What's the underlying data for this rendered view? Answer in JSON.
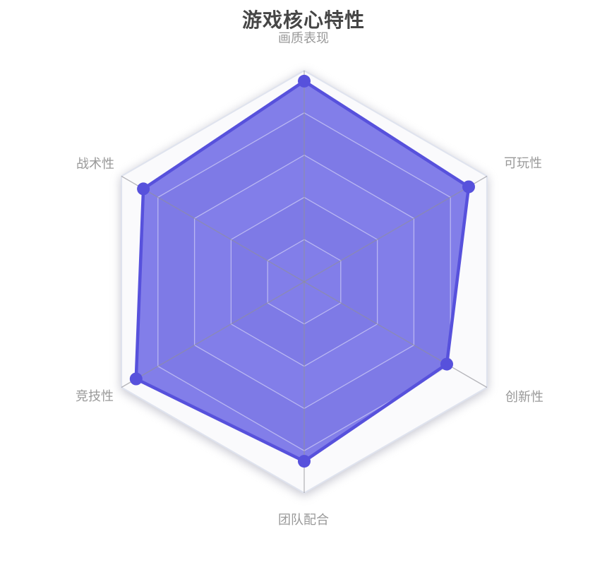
{
  "chart_data": {
    "type": "radar",
    "title": "游戏核心特性",
    "axis_max": 100,
    "axis_min": 0,
    "ring_count": 5,
    "grid_shape": "hexagon",
    "grid": "on",
    "legend_position": "none",
    "indicators": [
      {
        "name": "画质表现",
        "value": 95
      },
      {
        "name": "可玩性",
        "value": 90
      },
      {
        "name": "创新性",
        "value": 78
      },
      {
        "name": "团队配合",
        "value": 85
      },
      {
        "name": "竞技性",
        "value": 92
      },
      {
        "name": "战术性",
        "value": 88
      }
    ],
    "series": [
      {
        "name": "游戏核心特性",
        "values": [
          95,
          90,
          78,
          85,
          92,
          88
        ]
      }
    ]
  },
  "colors": {
    "title_text": "#464646",
    "axis_label_text": "#999999",
    "series_line": "#5751dc",
    "series_point": "#5751dc",
    "series_fill": "rgba(85,80,226,0.73)",
    "band_light": "#fafafc",
    "band_dark": "#ededf1",
    "outer_border": "#dfe3ee",
    "ring_line": "rgba(255,255,255,0.45)",
    "spoke_line": "rgba(145,145,150,0.65)"
  }
}
